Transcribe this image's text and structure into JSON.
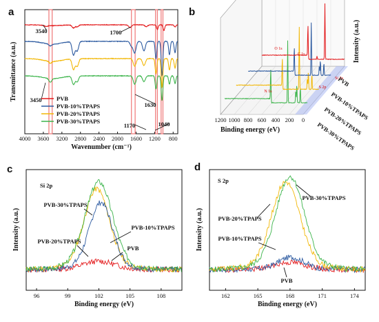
{
  "colors": {
    "PVB": "#e31a1c",
    "PVB-10%TPAPS": "#2c5aa0",
    "PVB-20%TPAPS": "#f2b705",
    "PVB-30%TPAPS": "#3cb44b",
    "highlight": "#f08080",
    "peak": "#444444"
  },
  "panels": {
    "a": "a",
    "b": "b",
    "c": "c",
    "d": "d"
  },
  "chart_data": [
    {
      "id": "a",
      "type": "line",
      "xlabel": "Wavenumber (cm⁻¹)",
      "ylabel": "Transmittance (a.u.)",
      "xlim": [
        4000,
        700
      ],
      "x_ticks": [
        4000,
        3600,
        3200,
        2800,
        2400,
        2000,
        1600,
        1200,
        800
      ],
      "y_ticks": [],
      "legend_position": "bottom-left",
      "highlight_bands": [
        [
          3480,
          3410
        ],
        [
          1700,
          1620
        ],
        [
          1180,
          1140
        ],
        [
          1060,
          1020
        ]
      ],
      "annotations": [
        {
          "text": "3540",
          "x": 3540
        },
        {
          "text": "1700",
          "x": 1700
        },
        {
          "text": "3450",
          "x": 3450
        },
        {
          "text": "1630",
          "x": 1630
        },
        {
          "text": "1170",
          "x": 1170
        },
        {
          "text": "1040",
          "x": 1040
        }
      ],
      "series": [
        {
          "name": "PVB",
          "offset": 0.0,
          "peaks": [
            [
              3540,
              0.03
            ],
            [
              2950,
              0.08
            ],
            [
              2870,
              0.05
            ],
            [
              1730,
              0.07
            ],
            [
              1380,
              0.05
            ],
            [
              1140,
              0.12
            ],
            [
              1000,
              0.15
            ],
            [
              760,
              0.06
            ]
          ]
        },
        {
          "name": "PVB-10%TPAPS",
          "offset": 1.0,
          "peaks": [
            [
              3450,
              0.05
            ],
            [
              2950,
              0.35
            ],
            [
              2870,
              0.25
            ],
            [
              1700,
              0.12
            ],
            [
              1630,
              0.3
            ],
            [
              1430,
              0.25
            ],
            [
              1170,
              0.45
            ],
            [
              1040,
              0.9
            ],
            [
              880,
              0.35
            ],
            [
              760,
              0.3
            ]
          ]
        },
        {
          "name": "PVB-20%TPAPS",
          "offset": 2.0,
          "peaks": [
            [
              3450,
              0.05
            ],
            [
              2950,
              0.28
            ],
            [
              2870,
              0.2
            ],
            [
              1630,
              0.2
            ],
            [
              1430,
              0.18
            ],
            [
              1170,
              0.4
            ],
            [
              1040,
              0.75
            ],
            [
              880,
              0.3
            ],
            [
              760,
              0.25
            ]
          ]
        },
        {
          "name": "PVB-30%TPAPS",
          "offset": 3.0,
          "peaks": [
            [
              3450,
              0.1
            ],
            [
              2950,
              0.22
            ],
            [
              2870,
              0.15
            ],
            [
              1630,
              0.22
            ],
            [
              1430,
              0.15
            ],
            [
              1170,
              0.35
            ],
            [
              1040,
              0.65
            ],
            [
              880,
              0.22
            ],
            [
              760,
              0.2
            ]
          ]
        }
      ]
    },
    {
      "id": "b",
      "type": "line",
      "xlabel": "Binding energy (eV)",
      "ylabel": "Intensity (a.u.)",
      "xlim": [
        1200,
        0
      ],
      "x_ticks": [
        1200,
        1000,
        800,
        600,
        400,
        200,
        0
      ],
      "y_ticks": [],
      "depth_labels": [
        "PVB",
        "PVB-10%TPAPS",
        "PVB-20%TPAPS",
        "PVB-30%TPAPS"
      ],
      "annotations": [
        {
          "text": "O 1s",
          "x": 531
        },
        {
          "text": "C 1s",
          "x": 285
        },
        {
          "text": "N 1s",
          "x": 400
        },
        {
          "text": "Si 2s",
          "x": 153
        },
        {
          "text": "S 2p",
          "x": 168
        }
      ],
      "series": [
        {
          "name": "PVB",
          "peaks": [
            [
              531,
              0.55
            ],
            [
              285,
              0.9
            ],
            [
              400,
              0.05
            ]
          ]
        },
        {
          "name": "PVB-10%TPAPS",
          "peaks": [
            [
              531,
              0.45
            ],
            [
              285,
              0.85
            ],
            [
              153,
              0.25
            ],
            [
              102,
              0.2
            ],
            [
              168,
              0.15
            ]
          ]
        },
        {
          "name": "PVB-20%TPAPS",
          "peaks": [
            [
              531,
              0.5
            ],
            [
              285,
              1.0
            ],
            [
              153,
              0.3
            ],
            [
              102,
              0.25
            ],
            [
              168,
              0.18
            ]
          ]
        },
        {
          "name": "PVB-30%TPAPS",
          "peaks": [
            [
              531,
              0.55
            ],
            [
              285,
              1.0
            ],
            [
              153,
              0.3
            ],
            [
              102,
              0.25
            ],
            [
              168,
              0.2
            ]
          ]
        }
      ]
    },
    {
      "id": "c",
      "type": "line",
      "title": "Si 2p",
      "xlabel": "Binding energy (eV)",
      "ylabel": "Intensity (a.u.)",
      "xlim": [
        95,
        110
      ],
      "x_ticks": [
        96,
        99,
        102,
        105,
        108
      ],
      "y_ticks": [],
      "annotations": [
        {
          "text": "PVB-30%TPAPS",
          "x": 101.7
        },
        {
          "text": "PVB-10%TPAPS",
          "x": 102.4
        },
        {
          "text": "PVB-20%TPAPS",
          "x": 101.0
        },
        {
          "text": "PVB",
          "x": 103.3
        }
      ],
      "series": [
        {
          "name": "PVB-30%TPAPS",
          "center": 102.0,
          "width": 1.3,
          "height": 0.85,
          "noise_seed": 3
        },
        {
          "name": "PVB-10%TPAPS",
          "center": 102.2,
          "width": 1.1,
          "height": 0.65,
          "noise_seed": 7
        },
        {
          "name": "PVB-20%TPAPS",
          "center": 101.8,
          "width": 1.2,
          "height": 0.78,
          "noise_seed": 11
        },
        {
          "name": "PVB",
          "center": 102.0,
          "width": 1.5,
          "height": 0.08,
          "noise_seed": 13
        }
      ]
    },
    {
      "id": "d",
      "type": "line",
      "title": "S 2p",
      "xlabel": "Binding energy (eV)",
      "ylabel": "Intensity (a.u.)",
      "xlim": [
        160.5,
        175
      ],
      "x_ticks": [
        162,
        165,
        168,
        171,
        174
      ],
      "y_ticks": [],
      "annotations": [
        {
          "text": "PVB-30%TPAPS",
          "x": 167.8
        },
        {
          "text": "PVB-20%TPAPS",
          "x": 166.8
        },
        {
          "text": "PVB-10%TPAPS",
          "x": 168.0
        },
        {
          "text": "PVB",
          "x": 168.0
        }
      ],
      "series": [
        {
          "name": "PVB-30%TPAPS",
          "center": 168.0,
          "width": 1.3,
          "height": 0.9,
          "noise_seed": 5
        },
        {
          "name": "PVB-20%TPAPS",
          "center": 167.6,
          "width": 1.3,
          "height": 0.85,
          "noise_seed": 9
        },
        {
          "name": "PVB-10%TPAPS",
          "center": 168.1,
          "width": 1.2,
          "height": 0.12,
          "noise_seed": 17
        },
        {
          "name": "PVB",
          "center": 168.0,
          "width": 1.4,
          "height": 0.07,
          "noise_seed": 19
        }
      ]
    }
  ]
}
